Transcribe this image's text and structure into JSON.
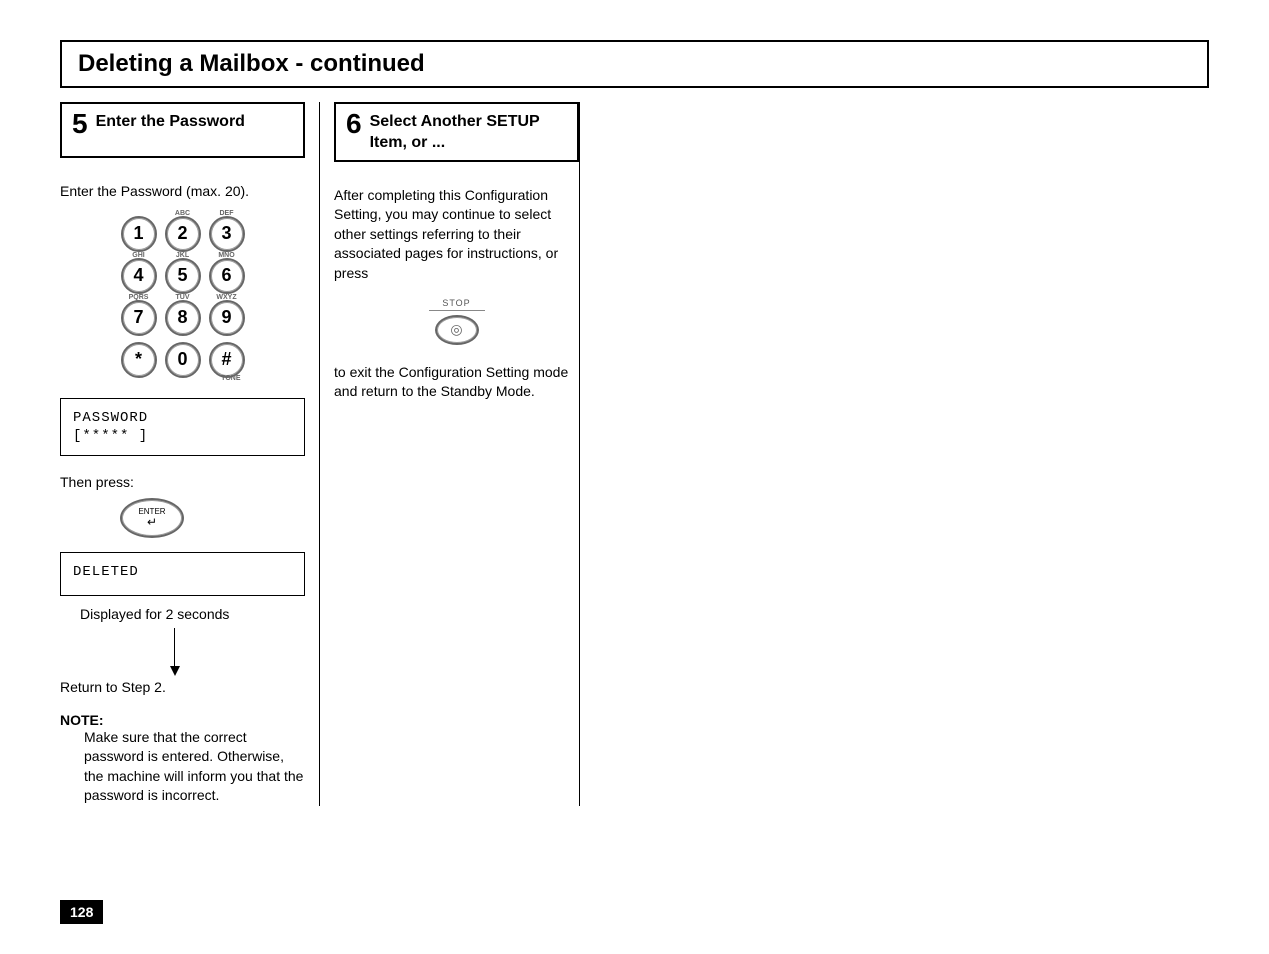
{
  "title": "Deleting a Mailbox - continued",
  "step5": {
    "number": "5",
    "title": "Enter the Password",
    "intro": "Enter the Password (max. 20).",
    "lcd1_line1": "PASSWORD",
    "lcd1_line2": "[*****          ]",
    "then_press": "Then press:",
    "enter_label": "ENTER",
    "lcd2_line1": "DELETED",
    "caption": "Displayed for 2 seconds",
    "return_text": "Return to Step 2.",
    "note_heading": "NOTE:",
    "note_body": "Make sure that the correct password is entered. Otherwise, the machine will inform you that the password is incorrect."
  },
  "step6": {
    "number": "6",
    "title": "Select Another SETUP Item, or ...",
    "para1": "After completing this Configuration Setting, you may continue to select other settings referring to their associated pages for instructions, or press",
    "stop_label": "STOP",
    "para2": "to exit the Configuration Setting mode and return to the Standby Mode."
  },
  "keypad": {
    "keys": [
      [
        {
          "n": "1",
          "sup": ""
        },
        {
          "n": "2",
          "sup": "ABC"
        },
        {
          "n": "3",
          "sup": "DEF"
        }
      ],
      [
        {
          "n": "4",
          "sup": "GHI"
        },
        {
          "n": "5",
          "sup": "JKL"
        },
        {
          "n": "6",
          "sup": "MNO"
        }
      ],
      [
        {
          "n": "7",
          "sup": "PQRS"
        },
        {
          "n": "8",
          "sup": "TUV"
        },
        {
          "n": "9",
          "sup": "WXYZ"
        }
      ],
      [
        {
          "n": "*",
          "sup": ""
        },
        {
          "n": "0",
          "sup": ""
        },
        {
          "n": "#",
          "sup": ""
        }
      ]
    ],
    "tone_label": "TONE"
  },
  "page_number": "128"
}
